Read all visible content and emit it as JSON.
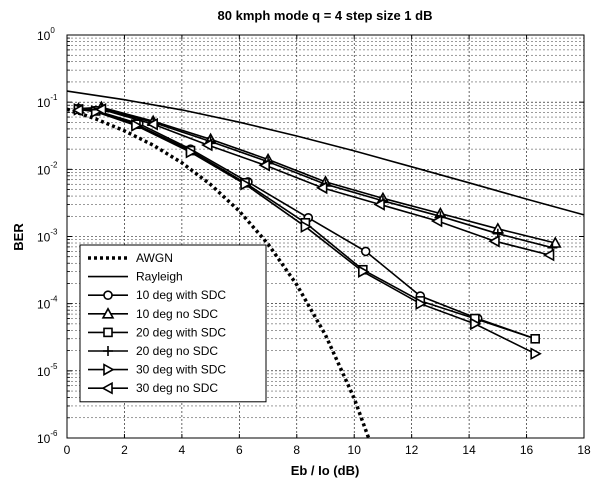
{
  "chart_data": {
    "type": "line",
    "title": "80 kmph mode q = 4 step size 1 dB",
    "xlabel": "Eb / Io (dB)",
    "ylabel": "BER",
    "x_ticks": [
      0,
      2,
      4,
      6,
      8,
      10,
      12,
      14,
      16,
      18
    ],
    "y_tick_labels": [
      {
        "base": "10",
        "exp": "0"
      },
      {
        "base": "10",
        "exp": "-1"
      },
      {
        "base": "10",
        "exp": "-2"
      },
      {
        "base": "10",
        "exp": "-3"
      },
      {
        "base": "10",
        "exp": "-4"
      },
      {
        "base": "10",
        "exp": "-5"
      },
      {
        "base": "10",
        "exp": "-6"
      }
    ],
    "xlim": [
      0,
      18
    ],
    "ylim": [
      1e-06,
      1
    ],
    "yscale": "log",
    "grid": true,
    "legend_position": "bottom-left",
    "series": [
      {
        "name": "AWGN",
        "line": "dotted",
        "marker": "none",
        "x": [
          0,
          1,
          2,
          3,
          4,
          5,
          6,
          7,
          8,
          9,
          10,
          10.5
        ],
        "y": [
          0.0786,
          0.0563,
          0.0375,
          0.0229,
          0.0125,
          0.00595,
          0.00239,
          0.00077,
          0.000191,
          3.4e-05,
          3.9e-06,
          1e-06
        ]
      },
      {
        "name": "Rayleigh",
        "line": "solid",
        "marker": "none",
        "x": [
          0,
          2,
          4,
          6,
          8,
          10,
          12,
          14,
          16,
          18
        ],
        "y": [
          0.146,
          0.109,
          0.0767,
          0.0504,
          0.0314,
          0.0188,
          0.0109,
          0.0063,
          0.0036,
          0.0021
        ]
      },
      {
        "name": "10 deg with SDC",
        "line": "solid",
        "marker": "circle",
        "x": [
          0.4,
          1.0,
          2.5,
          4.3,
          6.3,
          8.4,
          10.4,
          12.3,
          14.3,
          16.3
        ],
        "y": [
          0.08,
          0.075,
          0.048,
          0.02,
          0.0065,
          0.0019,
          0.0006,
          0.00013,
          6e-05,
          3e-05
        ]
      },
      {
        "name": "10 deg no SDC",
        "line": "solid",
        "marker": "triangle-up",
        "x": [
          0.4,
          1.2,
          3.0,
          5.0,
          7.0,
          9.0,
          11.0,
          13.0,
          15.0,
          17.0
        ],
        "y": [
          0.08,
          0.084,
          0.052,
          0.028,
          0.014,
          0.0065,
          0.0037,
          0.0022,
          0.0013,
          0.0008
        ]
      },
      {
        "name": "20 deg with SDC",
        "line": "solid",
        "marker": "square",
        "x": [
          0.4,
          1.0,
          2.4,
          4.3,
          6.2,
          8.3,
          10.3,
          12.3,
          14.2,
          16.3
        ],
        "y": [
          0.079,
          0.074,
          0.047,
          0.019,
          0.0063,
          0.0016,
          0.00032,
          0.00011,
          6e-05,
          3e-05
        ]
      },
      {
        "name": "20 deg no SDC",
        "line": "solid",
        "marker": "plus",
        "x": [
          0.4,
          1.2,
          3.0,
          5.0,
          7.0,
          9.0,
          11.0,
          13.0,
          15.0,
          16.9
        ],
        "y": [
          0.078,
          0.08,
          0.05,
          0.026,
          0.013,
          0.006,
          0.0034,
          0.002,
          0.0011,
          0.00068
        ]
      },
      {
        "name": "30 deg with SDC",
        "line": "solid",
        "marker": "triangle-right",
        "x": [
          0.4,
          1.0,
          2.4,
          4.3,
          6.2,
          8.3,
          10.3,
          12.3,
          14.2,
          16.3
        ],
        "y": [
          0.078,
          0.072,
          0.045,
          0.018,
          0.006,
          0.0014,
          0.0003,
          0.0001,
          5e-05,
          1.8e-05
        ]
      },
      {
        "name": "30 deg no SDC",
        "line": "solid",
        "marker": "triangle-left",
        "x": [
          0.4,
          1.2,
          3.0,
          4.9,
          6.9,
          8.9,
          10.9,
          12.9,
          14.9,
          16.8
        ],
        "y": [
          0.076,
          0.078,
          0.047,
          0.023,
          0.0115,
          0.0053,
          0.003,
          0.0017,
          0.00085,
          0.00053
        ]
      }
    ]
  }
}
